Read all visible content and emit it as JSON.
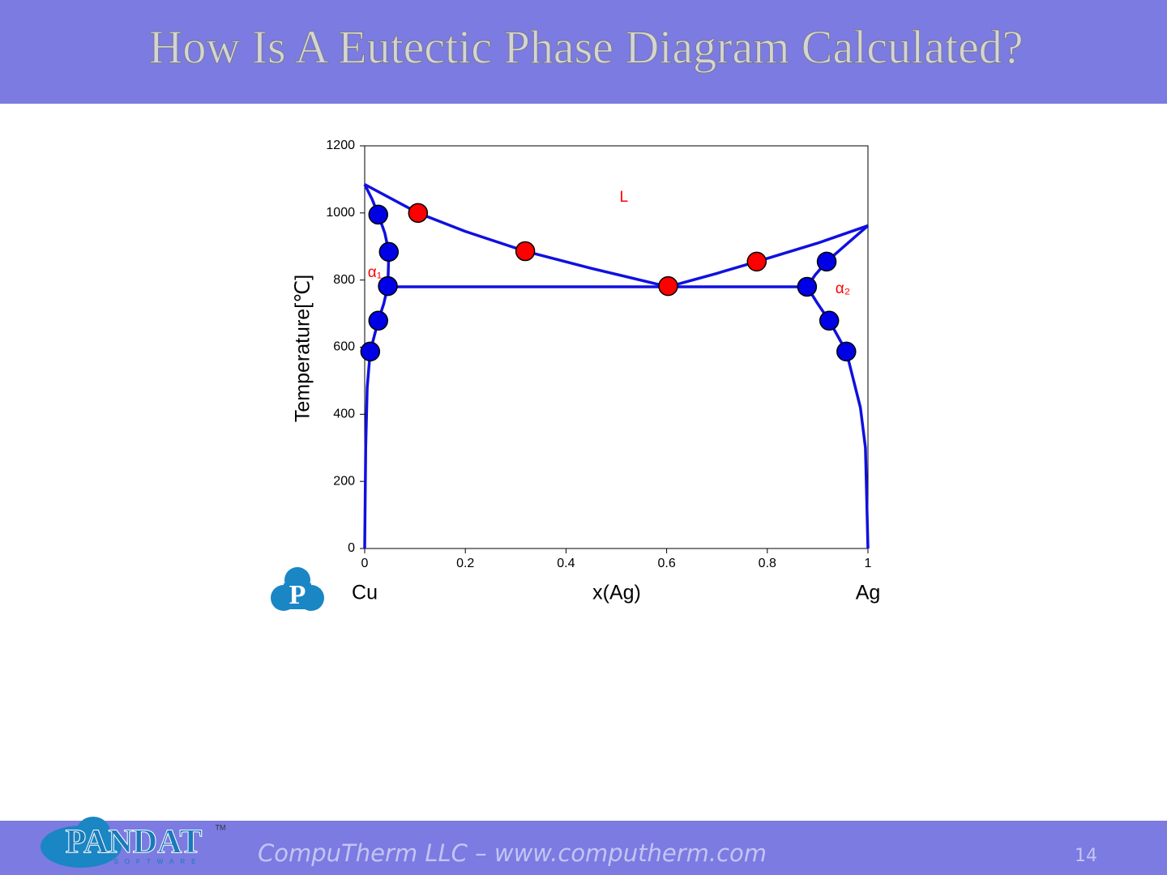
{
  "slide": {
    "title": "How Is A Eutectic Phase Diagram Calculated?",
    "footer": "CompuTherm LLC – www.computherm.com",
    "page_number": "14",
    "logo": {
      "name": "PANDAT",
      "tagline": "SOFTWARE",
      "mark": "TM",
      "badge": "P"
    }
  },
  "chart_data": {
    "type": "line",
    "x_label": "x(Ag)",
    "y_label": "Temperature[℃]",
    "x_end_labels": [
      "Cu",
      "Ag"
    ],
    "xlim": [
      0,
      1
    ],
    "xticks": [
      0,
      0.2,
      0.4,
      0.6,
      0.8,
      1
    ],
    "ylim": [
      0,
      1200
    ],
    "yticks": [
      0,
      200,
      400,
      600,
      800,
      1000,
      1200
    ],
    "annotations": [
      {
        "text": "L",
        "x": 0.515,
        "y": 1046,
        "color": "#ff0000"
      },
      {
        "text": "α₁",
        "x": 0.02,
        "y": 821,
        "color": "#ff0000"
      },
      {
        "text": "α₂",
        "x": 0.95,
        "y": 773,
        "color": "#ff0000"
      }
    ],
    "series": [
      {
        "type": "line",
        "color": "#1010e0",
        "x": [
          0,
          0.106,
          0.2,
          0.319,
          0.45,
          0.603
        ],
        "values": [
          1085,
          1000,
          945,
          886,
          835,
          780
        ]
      },
      {
        "type": "line",
        "color": "#1010e0",
        "x": [
          0.603,
          0.7,
          0.779,
          0.9,
          1
        ],
        "values": [
          780,
          820,
          855,
          910,
          962
        ]
      },
      {
        "type": "line",
        "color": "#1010e0",
        "x": [
          0,
          0.015,
          0.027,
          0.04,
          0.048,
          0.046,
          0.038,
          0.027,
          0.011,
          0.005,
          0.002,
          0
        ],
        "values": [
          1085,
          1040,
          995,
          940,
          884,
          782,
          730,
          679,
          587,
          480,
          300,
          0
        ]
      },
      {
        "type": "line",
        "color": "#1010e0",
        "x": [
          1,
          0.96,
          0.918,
          0.895,
          0.879,
          0.9,
          0.923,
          0.957,
          0.985,
          0.995,
          1
        ],
        "values": [
          962,
          910,
          855,
          815,
          780,
          730,
          679,
          587,
          420,
          300,
          0
        ]
      },
      {
        "type": "line",
        "color": "#1010e0",
        "x": [
          0.046,
          0.879
        ],
        "values": [
          780,
          780
        ]
      },
      {
        "type": "scatter",
        "color": "#0000e6",
        "x": [
          0.027,
          0.048,
          0.046,
          0.027,
          0.011,
          0.918,
          0.879,
          0.923,
          0.957
        ],
        "values": [
          995,
          884,
          782,
          679,
          587,
          855,
          780,
          679,
          587
        ]
      },
      {
        "type": "scatter",
        "color": "#ff0000",
        "x": [
          0.106,
          0.319,
          0.603,
          0.779
        ],
        "values": [
          1000,
          886,
          782,
          855
        ]
      }
    ]
  }
}
